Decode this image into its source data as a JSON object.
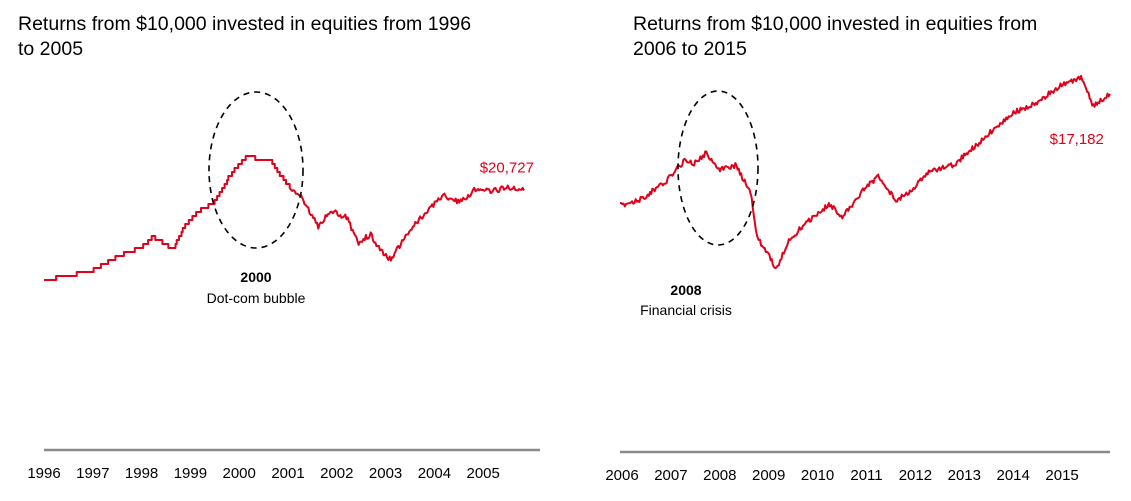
{
  "chart_data": [
    {
      "type": "line",
      "title": "Returns from $10,000 invested in equities from 1996 to 2005",
      "x": [
        "1996-01",
        "1996-07",
        "1997-01",
        "1997-07",
        "1998-01",
        "1998-04",
        "1998-09",
        "1998-12",
        "1999-03",
        "1999-07",
        "1999-11",
        "2000-03",
        "2000-09",
        "2001-01",
        "2001-05",
        "2001-09",
        "2001-12",
        "2002-04",
        "2002-07",
        "2002-10",
        "2002-12",
        "2003-03",
        "2003-07",
        "2003-12",
        "2004-04",
        "2004-08",
        "2004-12",
        "2005-04",
        "2005-08",
        "2005-12"
      ],
      "series": [
        {
          "values": [
            10000,
            10500,
            11200,
            12800,
            13900,
            15200,
            13700,
            16600,
            18200,
            19200,
            22500,
            24800,
            24400,
            21600,
            19800,
            16400,
            18400,
            17500,
            14500,
            15500,
            13800,
            12400,
            15600,
            18300,
            20200,
            19300,
            20900,
            20600,
            21200,
            20727
          ]
        }
      ],
      "x_tick_labels": [
        "1996",
        "1997",
        "1998",
        "1999",
        "2000",
        "2001",
        "2002",
        "2003",
        "2004",
        "2005"
      ],
      "end_label": "$20,727",
      "annotation": {
        "year": "2000",
        "text": "Dot-com bubble"
      },
      "grid": false,
      "line_color": "#e2001a"
    },
    {
      "type": "line",
      "title": "Returns from $10,000 invested in equities from 2006 to 2015",
      "x": [
        "2006-01",
        "2006-06",
        "2006-12",
        "2007-05",
        "2007-07",
        "2007-10",
        "2008-01",
        "2008-05",
        "2008-07",
        "2008-09",
        "2008-10",
        "2008-11",
        "2009-03",
        "2009-06",
        "2009-12",
        "2010-04",
        "2010-07",
        "2010-12",
        "2011-04",
        "2011-08",
        "2011-12",
        "2012-04",
        "2012-10",
        "2013-04",
        "2013-12",
        "2014-06",
        "2014-12",
        "2015-05",
        "2015-08",
        "2015-12"
      ],
      "series": [
        {
          "values": [
            10000,
            10400,
            11500,
            13000,
            12700,
            13400,
            12300,
            12600,
            11700,
            10600,
            8300,
            7700,
            5900,
            7800,
            9300,
            10100,
            9200,
            11000,
            11900,
            10300,
            11000,
            12200,
            12600,
            14000,
            15900,
            16600,
            17700,
            18200,
            16400,
            17182
          ]
        }
      ],
      "x_tick_labels": [
        "2006",
        "2007",
        "2008",
        "2009",
        "2010",
        "2011",
        "2012",
        "2013",
        "2014",
        "2015"
      ],
      "end_label": "$17,182",
      "annotation": {
        "year": "2008",
        "text": "Financial crisis"
      },
      "grid": false,
      "line_color": "#e2001a"
    }
  ]
}
